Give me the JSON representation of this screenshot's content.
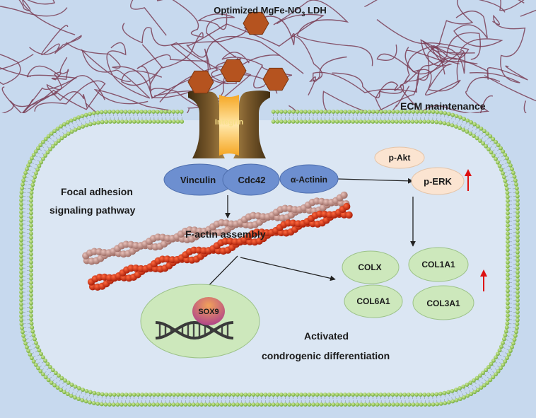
{
  "title": {
    "prefix": "Optimized MgFe-NO",
    "subscript": "3",
    "suffix": " LDH"
  },
  "ecm_label": "ECM maintenance",
  "integrin_label": "Integrin",
  "proteins": {
    "vinculin": "Vinculin",
    "cdc42": "Cdc42",
    "actinin": "α-Actinin"
  },
  "kinases": {
    "akt": "p-Akt",
    "erk": "p-ERK"
  },
  "pathway_label": {
    "line1": "Focal adhesion",
    "line2": "signaling pathway"
  },
  "factin_label": "F-actin assembly",
  "sox9_label": "SOX9",
  "collagens": {
    "colx": "COLX",
    "col1a1": "COL1A1",
    "col6a1": "COL6A1",
    "col3a1": "COL3A1"
  },
  "differentiation_label": {
    "line1": "Activated",
    "line2": "condrogenic differentiation"
  },
  "colors": {
    "background": "#c7d9ee",
    "cytoplasm": "#dbe6f3",
    "ecm_fiber": "#7a3d55",
    "hexagon": "#b5531f",
    "membrane_head": "#8cc456",
    "integrin": "#6e5028",
    "protein": "#6d8fd0",
    "kinase": "#fbe4d1",
    "collagen": "#cde8bc",
    "factin_light": "#c09088",
    "factin_dark": "#cc2a10",
    "up_arrow": "#dd1111"
  }
}
